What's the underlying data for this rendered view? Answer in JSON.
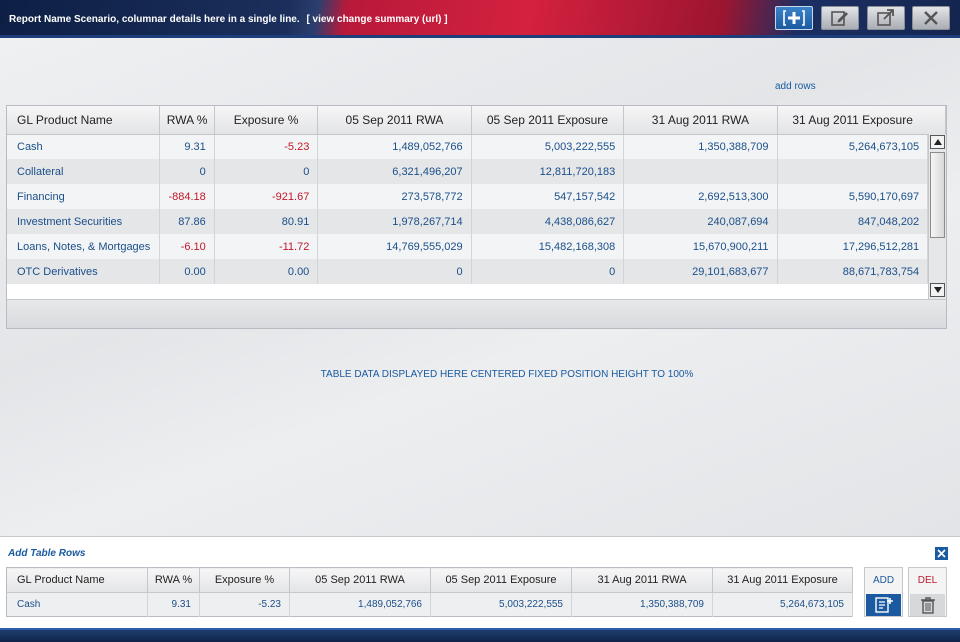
{
  "header": {
    "title": "Report Name Scenario, columnar details here in a single line.",
    "link": "[ view change summary (url) ]",
    "buttons": [
      {
        "icon": "add-box-icon"
      },
      {
        "icon": "edit-icon"
      },
      {
        "icon": "popout-icon"
      },
      {
        "icon": "close-icon"
      }
    ]
  },
  "toolbar": {
    "add_rows": "add rows"
  },
  "grid": {
    "columns": [
      "GL Product Name",
      "RWA %",
      "Exposure %",
      "05 Sep 2011 RWA",
      "05 Sep 2011 Exposure",
      "31 Aug 2011 RWA",
      "31 Aug 2011 Exposure"
    ],
    "rows": [
      [
        "Cash",
        "9.31",
        "-5.23",
        "1,489,052,766",
        "5,003,222,555",
        "1,350,388,709",
        "5,264,673,105"
      ],
      [
        "Collateral",
        "0",
        "0",
        "6,321,496,207",
        "12,811,720,183",
        "",
        ""
      ],
      [
        "Financing",
        "-884.18",
        "-921.67",
        "273,578,772",
        "547,157,542",
        "2,692,513,300",
        "5,590,170,697"
      ],
      [
        "Investment Securities",
        "87.86",
        "80.91",
        "1,978,267,714",
        "4,438,086,627",
        "240,087,694",
        "847,048,202"
      ],
      [
        "Loans, Notes, & Mortgages",
        "-6.10",
        "-11.72",
        "14,769,555,029",
        "15,482,168,308",
        "15,670,900,211",
        "17,296,512,281"
      ],
      [
        "OTC Derivatives",
        "0.00",
        "0.00",
        "0",
        "0",
        "29,101,683,677",
        "88,671,783,754"
      ]
    ],
    "negative_color": "#c0192b"
  },
  "center_message": "TABLE DATA DISPLAYED HERE CENTERED FIXED POSITION HEIGHT TO 100%",
  "add_panel": {
    "title": "Add Table Rows",
    "columns": [
      "GL Product Name",
      "RWA %",
      "Exposure %",
      "05 Sep 2011 RWA",
      "05 Sep 2011 Exposure",
      "31 Aug 2011 RWA",
      "31 Aug 2011 Exposure"
    ],
    "row": [
      "Cash",
      "9.31",
      "-5.23",
      "1,489,052,766",
      "5,003,222,555",
      "1,350,388,709",
      "5,264,673,105"
    ],
    "add_label": "ADD",
    "del_label": "DEL",
    "add_color": "#1a5aa0",
    "del_color": "#c0192b"
  }
}
